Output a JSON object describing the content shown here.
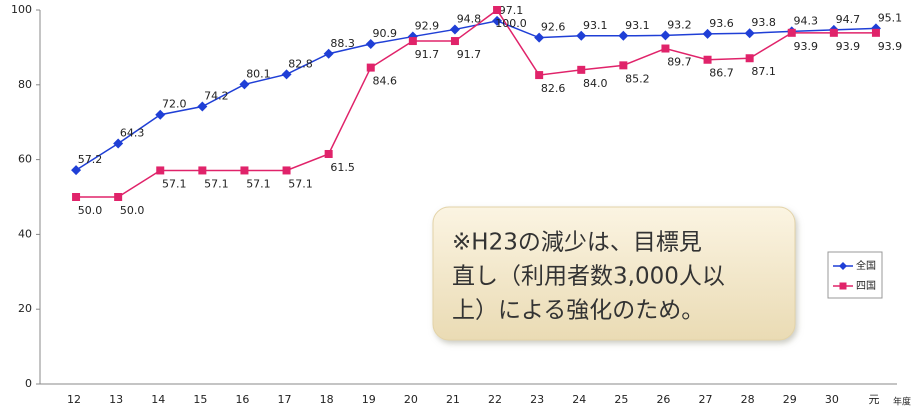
{
  "chart_data": {
    "type": "line",
    "categories": [
      "12",
      "13",
      "14",
      "15",
      "16",
      "17",
      "18",
      "19",
      "20",
      "21",
      "22",
      "23",
      "24",
      "25",
      "26",
      "27",
      "28",
      "29",
      "30",
      "元"
    ],
    "x_label": "年度",
    "series": [
      {
        "name": "全国",
        "color": "#1f3fd6",
        "marker": "diamond",
        "values": [
          57.2,
          64.3,
          72.0,
          74.2,
          80.1,
          82.8,
          88.3,
          90.9,
          92.9,
          94.8,
          97.1,
          92.6,
          93.1,
          93.1,
          93.2,
          93.6,
          93.8,
          94.3,
          94.7,
          95.1
        ],
        "value_labels": [
          "57.2",
          "64.3",
          "72.0",
          "74.2",
          "80.1",
          "82.8",
          "88.3",
          "90.9",
          "92.9",
          "94.8",
          "97.1",
          "92.6",
          "93.1",
          "93.1",
          "93.2",
          "93.6",
          "93.8",
          "94.3",
          "94.7",
          "95.1"
        ]
      },
      {
        "name": "四国",
        "color": "#e0236a",
        "marker": "square",
        "values": [
          50.0,
          50.0,
          57.1,
          57.1,
          57.1,
          57.1,
          61.5,
          84.6,
          91.7,
          91.7,
          100.0,
          82.6,
          84.0,
          85.2,
          89.7,
          86.7,
          87.1,
          93.9,
          93.9,
          93.9
        ],
        "value_labels": [
          "50.0",
          "50.0",
          "57.1",
          "57.1",
          "57.1",
          "57.1",
          "61.5",
          "84.6",
          "91.7",
          "91.7",
          "100.0",
          "82.6",
          "84.0",
          "85.2",
          "89.7",
          "86.7",
          "87.1",
          "93.9",
          "93.9",
          "93.9"
        ]
      }
    ],
    "ylim": [
      0,
      100
    ],
    "yticks": [
      0,
      20,
      40,
      60,
      80,
      100
    ],
    "grid": false,
    "annotation": [
      "※H23の減少は、目標見",
      "直し（利用者数3,000人以",
      "上）による強化のため。"
    ]
  }
}
